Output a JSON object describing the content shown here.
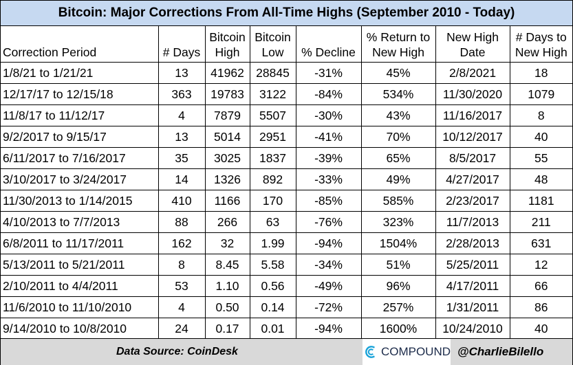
{
  "title": "Bitcoin: Major Corrections From All-Time Highs (September 2010 - Today)",
  "table": {
    "headers": [
      "Correction Period",
      "# Days",
      "Bitcoin High",
      "Bitcoin Low",
      "% Decline",
      "% Return to New High",
      "New High Date",
      "# Days to New High"
    ],
    "rows": [
      [
        "1/8/21 to 1/21/21",
        "13",
        "41962",
        "28845",
        "-31%",
        "45%",
        "2/8/2021",
        "18"
      ],
      [
        "12/17/17 to 12/15/18",
        "363",
        "19783",
        "3122",
        "-84%",
        "534%",
        "11/30/2020",
        "1079"
      ],
      [
        "11/8/17 to 11/12/17",
        "4",
        "7879",
        "5507",
        "-30%",
        "43%",
        "11/16/2017",
        "8"
      ],
      [
        "9/2/2017 to 9/15/17",
        "13",
        "5014",
        "2951",
        "-41%",
        "70%",
        "10/12/2017",
        "40"
      ],
      [
        "6/11/2017 to 7/16/2017",
        "35",
        "3025",
        "1837",
        "-39%",
        "65%",
        "8/5/2017",
        "55"
      ],
      [
        "3/10/2017 to 3/24/2017",
        "14",
        "1326",
        "892",
        "-33%",
        "49%",
        "4/27/2017",
        "48"
      ],
      [
        "11/30/2013 to 1/14/2015",
        "410",
        "1166",
        "170",
        "-85%",
        "585%",
        "2/23/2017",
        "1181"
      ],
      [
        "4/10/2013 to 7/7/2013",
        "88",
        "266",
        "63",
        "-76%",
        "323%",
        "11/7/2013",
        "211"
      ],
      [
        "6/8/2011 to 11/17/2011",
        "162",
        "32",
        "1.99",
        "-94%",
        "1504%",
        "2/28/2013",
        "631"
      ],
      [
        "5/13/2011 to 5/21/2011",
        "8",
        "8.45",
        "5.58",
        "-34%",
        "51%",
        "5/25/2011",
        "12"
      ],
      [
        "2/10/2011 to 4/4/2011",
        "53",
        "1.10",
        "0.56",
        "-49%",
        "96%",
        "4/17/2011",
        "66"
      ],
      [
        "11/6/2010 to 11/10/2010",
        "4",
        "0.50",
        "0.14",
        "-72%",
        "257%",
        "1/31/2011",
        "86"
      ],
      [
        "9/14/2010 to 10/8/2010",
        "24",
        "0.17",
        "0.01",
        "-94%",
        "1600%",
        "10/24/2010",
        "40"
      ]
    ]
  },
  "footer": {
    "source": "Data Source: CoinDesk",
    "logo": "COMPOUND",
    "handle": "@CharlieBilello"
  }
}
